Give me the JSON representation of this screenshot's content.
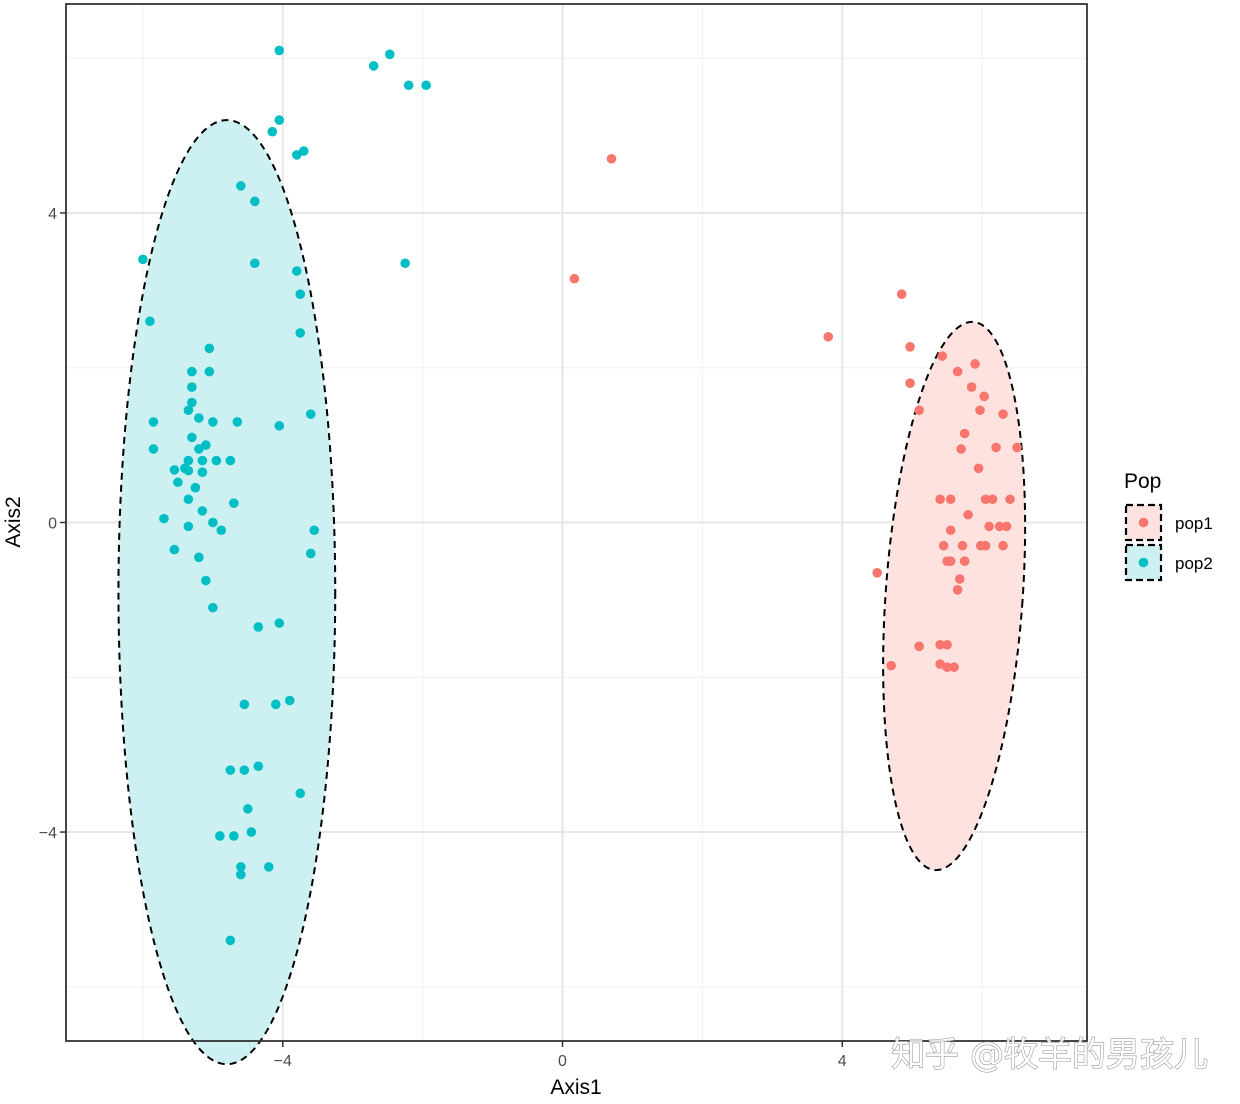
{
  "chart_data": {
    "type": "scatter",
    "title": "",
    "xlabel": "Axis1",
    "ylabel": "Axis2",
    "xlim": [
      -7.1,
      7.5
    ],
    "ylim": [
      -6.7,
      6.7
    ],
    "x_ticks": [
      -4,
      0,
      4
    ],
    "y_ticks": [
      -4,
      0,
      4
    ],
    "x_tick_labels": [
      "−4",
      "0",
      "4"
    ],
    "y_tick_labels": [
      "−4",
      "0",
      "4"
    ],
    "grid": true,
    "legend": {
      "title": "Pop",
      "position": "right"
    },
    "ellipse_style": "dashed",
    "series": [
      {
        "name": "pop1",
        "color": "#F8766D",
        "fill": "#FDE2DF",
        "ellipse": {
          "cx": 5.6,
          "cy": -0.95,
          "rx": 0.98,
          "ry": 3.55,
          "angle": 4
        },
        "points": [
          [
            0.7,
            4.7
          ],
          [
            0.17,
            3.15
          ],
          [
            3.8,
            2.4
          ],
          [
            4.85,
            2.95
          ],
          [
            4.97,
            2.27
          ],
          [
            5.43,
            2.15
          ],
          [
            5.9,
            2.05
          ],
          [
            5.65,
            1.95
          ],
          [
            4.97,
            1.8
          ],
          [
            5.85,
            1.75
          ],
          [
            6.03,
            1.63
          ],
          [
            5.1,
            1.45
          ],
          [
            5.97,
            1.45
          ],
          [
            6.3,
            1.4
          ],
          [
            5.75,
            1.15
          ],
          [
            5.7,
            0.95
          ],
          [
            6.2,
            0.97
          ],
          [
            6.5,
            0.97
          ],
          [
            5.95,
            0.7
          ],
          [
            5.4,
            0.3
          ],
          [
            5.55,
            0.3
          ],
          [
            6.05,
            0.3
          ],
          [
            6.15,
            0.3
          ],
          [
            6.4,
            0.3
          ],
          [
            5.8,
            0.1
          ],
          [
            5.55,
            -0.1
          ],
          [
            6.1,
            -0.05
          ],
          [
            6.25,
            -0.05
          ],
          [
            6.35,
            -0.05
          ],
          [
            5.45,
            -0.3
          ],
          [
            5.72,
            -0.3
          ],
          [
            5.98,
            -0.3
          ],
          [
            6.05,
            -0.3
          ],
          [
            6.3,
            -0.3
          ],
          [
            5.5,
            -0.5
          ],
          [
            5.55,
            -0.5
          ],
          [
            5.75,
            -0.5
          ],
          [
            4.5,
            -0.65
          ],
          [
            5.68,
            -0.73
          ],
          [
            5.65,
            -0.87
          ],
          [
            5.1,
            -1.6
          ],
          [
            5.4,
            -1.58
          ],
          [
            5.5,
            -1.58
          ],
          [
            4.7,
            -1.85
          ],
          [
            5.4,
            -1.83
          ],
          [
            5.5,
            -1.87
          ],
          [
            5.6,
            -1.87
          ]
        ]
      },
      {
        "name": "pop2",
        "color": "#00BFC4",
        "fill": "#CDF0F2",
        "ellipse": {
          "cx": -4.8,
          "cy": -0.9,
          "rx": 1.55,
          "ry": 6.1,
          "angle": 0
        },
        "points": [
          [
            -4.05,
            6.1
          ],
          [
            -2.7,
            5.9
          ],
          [
            -2.47,
            6.05
          ],
          [
            -2.2,
            5.65
          ],
          [
            -1.95,
            5.65
          ],
          [
            -4.05,
            5.2
          ],
          [
            -4.15,
            5.05
          ],
          [
            -3.7,
            4.8
          ],
          [
            -3.8,
            4.75
          ],
          [
            -4.6,
            4.35
          ],
          [
            -4.4,
            4.15
          ],
          [
            -6.0,
            3.4
          ],
          [
            -4.4,
            3.35
          ],
          [
            -2.25,
            3.35
          ],
          [
            -3.8,
            3.25
          ],
          [
            -3.75,
            2.95
          ],
          [
            -5.9,
            2.6
          ],
          [
            -3.75,
            2.45
          ],
          [
            -5.05,
            2.25
          ],
          [
            -5.3,
            1.95
          ],
          [
            -5.05,
            1.95
          ],
          [
            -5.3,
            1.75
          ],
          [
            -5.3,
            1.55
          ],
          [
            -5.35,
            1.45
          ],
          [
            -5.2,
            1.35
          ],
          [
            -3.6,
            1.4
          ],
          [
            -5.85,
            1.3
          ],
          [
            -5.0,
            1.3
          ],
          [
            -4.65,
            1.3
          ],
          [
            -4.05,
            1.25
          ],
          [
            -5.3,
            1.1
          ],
          [
            -5.1,
            1.0
          ],
          [
            -5.2,
            0.95
          ],
          [
            -5.85,
            0.95
          ],
          [
            -5.15,
            0.8
          ],
          [
            -4.95,
            0.8
          ],
          [
            -5.35,
            0.8
          ],
          [
            -4.75,
            0.8
          ],
          [
            -5.4,
            0.7
          ],
          [
            -5.55,
            0.68
          ],
          [
            -5.35,
            0.67
          ],
          [
            -5.15,
            0.65
          ],
          [
            -5.5,
            0.52
          ],
          [
            -5.25,
            0.45
          ],
          [
            -5.35,
            0.3
          ],
          [
            -4.7,
            0.25
          ],
          [
            -5.15,
            0.15
          ],
          [
            -5.7,
            0.05
          ],
          [
            -5.0,
            0.0
          ],
          [
            -5.35,
            -0.05
          ],
          [
            -4.88,
            -0.1
          ],
          [
            -3.55,
            -0.1
          ],
          [
            -5.55,
            -0.35
          ],
          [
            -5.2,
            -0.45
          ],
          [
            -3.6,
            -0.4
          ],
          [
            -5.1,
            -0.75
          ],
          [
            -5.0,
            -1.1
          ],
          [
            -4.35,
            -1.35
          ],
          [
            -4.05,
            -1.3
          ],
          [
            -4.55,
            -2.35
          ],
          [
            -4.1,
            -2.35
          ],
          [
            -3.9,
            -2.3
          ],
          [
            -4.35,
            -3.15
          ],
          [
            -4.55,
            -3.2
          ],
          [
            -4.75,
            -3.2
          ],
          [
            -3.75,
            -3.5
          ],
          [
            -4.5,
            -3.7
          ],
          [
            -4.45,
            -4.0
          ],
          [
            -4.7,
            -4.05
          ],
          [
            -4.9,
            -4.05
          ],
          [
            -4.6,
            -4.45
          ],
          [
            -4.2,
            -4.45
          ],
          [
            -4.6,
            -4.55
          ],
          [
            -4.75,
            -5.4
          ]
        ]
      }
    ]
  },
  "watermark": "知乎 @牧羊的男孩儿"
}
